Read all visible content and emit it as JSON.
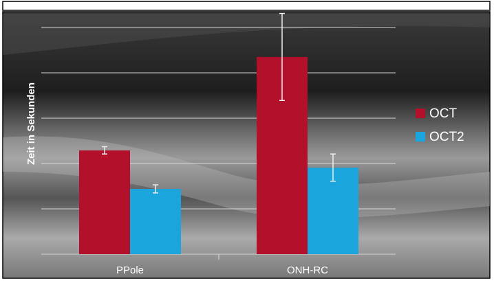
{
  "chart_data": {
    "type": "bar",
    "y_label": "Zeit in Sekunden",
    "categories": [
      "PPole",
      "ONH-RC"
    ],
    "series": [
      {
        "name": "OCT",
        "color": "#b3102c",
        "values": [
          2.29,
          4.35
        ],
        "errors": [
          0.08,
          0.96
        ]
      },
      {
        "name": "OCT2",
        "color": "#1aa6dc",
        "values": [
          1.44,
          1.91
        ],
        "errors": [
          0.09,
          0.3
        ]
      }
    ],
    "ylim": [
      0,
      5.5
    ],
    "yticks": [
      0,
      1,
      2,
      3,
      4,
      5
    ],
    "grid": true,
    "legend": "right"
  }
}
